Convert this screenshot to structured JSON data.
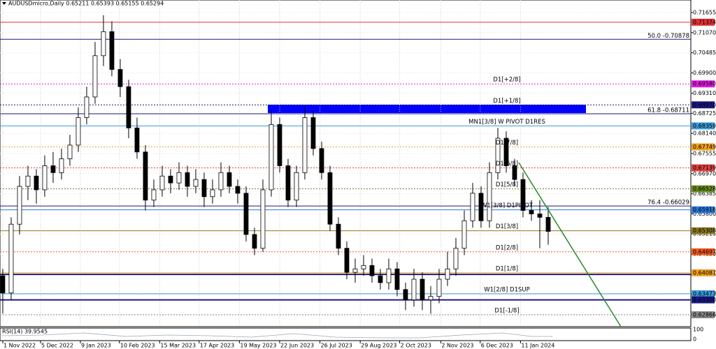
{
  "chart_data": {
    "type": "candlestick",
    "title": "AUDUSDmicro,Daily  0.65211 0.65393 0.65155 0.65294",
    "ylim": [
      0.6252,
      0.7202
    ],
    "yticks": [
      0.71655,
      {
        "value": 0.7107,
        "label": "0.71070"
      },
      0.70485,
      {
        "value": 0.699,
        "label": "0.69900"
      },
      {
        "value": 0.6931,
        "label": "0.69310"
      },
      0.68725,
      {
        "value": 0.6814,
        "label": "0.68140"
      },
      0.67555,
      {
        "value": 0.6697,
        "label": "0.66970"
      },
      0.66385,
      {
        "value": 0.658,
        "label": "0.65800"
      },
      0.65215,
      {
        "value": 0.6463,
        "label": "0.64630"
      },
      0.64045,
      {
        "value": 0.6346,
        "label": "0.63460"
      },
      0.62875
    ],
    "grid": true,
    "xlim": [
      -0.33,
      82
    ],
    "xticks": [
      {
        "value": 0,
        "label": "1 Nov 2022"
      },
      {
        "value": 4.5,
        "label": "5 Dec 2022"
      },
      {
        "value": 9.25,
        "label": "9 Jan 2023"
      },
      {
        "value": 13.9,
        "label": "10 Feb 2023"
      },
      {
        "value": 18.7,
        "label": "15 Mar 2023"
      },
      {
        "value": 23.4,
        "label": "17 Apr 2023"
      },
      {
        "value": 28.2,
        "label": "19 May 2023"
      },
      {
        "value": 33,
        "label": "22 Jun 2023"
      },
      {
        "value": 37.8,
        "label": "26 Jul 2023"
      },
      {
        "value": 42.6,
        "label": "29 Aug 2023"
      },
      {
        "value": 47.3,
        "label": "2 Oct 2023"
      },
      {
        "value": 52.2,
        "label": "2 Nov 2023"
      },
      {
        "value": 56.9,
        "label": "6 Dec 2023"
      },
      {
        "value": 61.7,
        "label": "11 Jan 2024"
      }
    ],
    "up_color": "#ffffff",
    "down_color": "#000000",
    "candles": [
      [
        0.64,
        0.642,
        0.629,
        0.635
      ],
      [
        0.635,
        0.657,
        0.633,
        0.655
      ],
      [
        0.655,
        0.669,
        0.652,
        0.666
      ],
      [
        0.666,
        0.672,
        0.662,
        0.669
      ],
      [
        0.669,
        0.671,
        0.661,
        0.665
      ],
      [
        0.665,
        0.675,
        0.663,
        0.672
      ],
      [
        0.672,
        0.676,
        0.667,
        0.67
      ],
      [
        0.67,
        0.677,
        0.668,
        0.674
      ],
      [
        0.674,
        0.681,
        0.672,
        0.678
      ],
      [
        0.678,
        0.689,
        0.676,
        0.686
      ],
      [
        0.686,
        0.695,
        0.684,
        0.692
      ],
      [
        0.692,
        0.708,
        0.69,
        0.704
      ],
      [
        0.704,
        0.7158,
        0.701,
        0.711
      ],
      [
        0.711,
        0.714,
        0.698,
        0.7
      ],
      [
        0.7,
        0.703,
        0.692,
        0.695
      ],
      [
        0.695,
        0.697,
        0.68,
        0.683
      ],
      [
        0.683,
        0.686,
        0.674,
        0.676
      ],
      [
        0.676,
        0.678,
        0.659,
        0.662
      ],
      [
        0.662,
        0.668,
        0.66,
        0.665
      ],
      [
        0.665,
        0.672,
        0.663,
        0.669
      ],
      [
        0.669,
        0.671,
        0.664,
        0.667
      ],
      [
        0.667,
        0.673,
        0.665,
        0.67
      ],
      [
        0.67,
        0.672,
        0.663,
        0.666
      ],
      [
        0.666,
        0.671,
        0.664,
        0.668
      ],
      [
        0.668,
        0.67,
        0.66,
        0.663
      ],
      [
        0.663,
        0.668,
        0.661,
        0.665
      ],
      [
        0.665,
        0.673,
        0.663,
        0.67
      ],
      [
        0.67,
        0.672,
        0.664,
        0.666
      ],
      [
        0.666,
        0.668,
        0.661,
        0.664
      ],
      [
        0.664,
        0.666,
        0.65,
        0.652
      ],
      [
        0.652,
        0.654,
        0.646,
        0.648
      ],
      [
        0.648,
        0.668,
        0.647,
        0.665
      ],
      [
        0.665,
        0.688,
        0.663,
        0.684
      ],
      [
        0.684,
        0.686,
        0.67,
        0.672
      ],
      [
        0.672,
        0.674,
        0.66,
        0.662
      ],
      [
        0.662,
        0.672,
        0.66,
        0.67
      ],
      [
        0.67,
        0.689,
        0.668,
        0.686
      ],
      [
        0.686,
        0.688,
        0.675,
        0.677
      ],
      [
        0.677,
        0.679,
        0.668,
        0.67
      ],
      [
        0.67,
        0.672,
        0.653,
        0.655
      ],
      [
        0.655,
        0.657,
        0.646,
        0.648
      ],
      [
        0.648,
        0.65,
        0.639,
        0.641
      ],
      [
        0.641,
        0.645,
        0.638,
        0.642
      ],
      [
        0.642,
        0.646,
        0.64,
        0.643
      ],
      [
        0.643,
        0.645,
        0.638,
        0.64
      ],
      [
        0.64,
        0.642,
        0.636,
        0.638
      ],
      [
        0.638,
        0.645,
        0.636,
        0.642
      ],
      [
        0.642,
        0.644,
        0.634,
        0.636
      ],
      [
        0.636,
        0.638,
        0.63,
        0.633
      ],
      [
        0.633,
        0.642,
        0.631,
        0.639
      ],
      [
        0.639,
        0.641,
        0.63,
        0.633
      ],
      [
        0.633,
        0.637,
        0.629,
        0.634
      ],
      [
        0.634,
        0.642,
        0.632,
        0.639
      ],
      [
        0.639,
        0.647,
        0.637,
        0.642
      ],
      [
        0.642,
        0.651,
        0.64,
        0.648
      ],
      [
        0.648,
        0.659,
        0.646,
        0.656
      ],
      [
        0.656,
        0.667,
        0.654,
        0.664
      ],
      [
        0.664,
        0.666,
        0.654,
        0.656
      ],
      [
        0.656,
        0.673,
        0.654,
        0.67
      ],
      [
        0.67,
        0.683,
        0.668,
        0.68
      ],
      [
        0.68,
        0.682,
        0.67,
        0.672
      ],
      [
        0.672,
        0.674,
        0.666,
        0.668
      ],
      [
        0.668,
        0.67,
        0.657,
        0.659
      ],
      [
        0.659,
        0.662,
        0.656,
        0.658
      ],
      [
        0.658,
        0.662,
        0.648,
        0.657
      ],
      [
        0.657,
        0.66,
        0.649,
        0.6529
      ]
    ],
    "levels": [
      {
        "price": 0.71374,
        "tag": "0.71374",
        "color": "#e03030",
        "style": "solid"
      },
      {
        "price": 0.70878,
        "text": "50.0 -0.70878",
        "color": "#1a1a80",
        "style": "solid"
      },
      {
        "price": 0.6958,
        "tag": "0.69580",
        "text": "D1[+2/8]",
        "color": "#e01ee0",
        "style": "dotted"
      },
      {
        "price": 0.6897,
        "tag": "0.68970",
        "text": "D1[+1/8]",
        "color": "#1a1a80",
        "style": "dotted"
      },
      {
        "price": 0.68711,
        "text": "61.8 -0.68711",
        "color": "#1a1a80",
        "style": "solid"
      },
      {
        "price": 0.68359,
        "tag": "0.68359",
        "text": "MN1[3/8] W PIVOT D1RES",
        "color": "#3a9ad9",
        "style": "solid"
      },
      {
        "price": 0.67749,
        "tag": "0.67749",
        "text": "D1[7/8]",
        "color": "#f0a020",
        "style": "dotted"
      },
      {
        "price": 0.67139,
        "tag": "0.67139",
        "text": "D1[6/8]",
        "color": "#e04040",
        "style": "dotted"
      },
      {
        "price": 0.66528,
        "tag": "0.66528",
        "text": "D1[5/8]",
        "color": "#6a8a20",
        "style": "dotted"
      },
      {
        "price": 0.66029,
        "text": "76.4 -0.66029",
        "color": "#1a1a80",
        "style": "solid"
      },
      {
        "price": 0.65918,
        "tag": "0.65918",
        "text": "W1[3/8] D1PIVOT",
        "color": "#2a7ad9",
        "style": "solid"
      },
      {
        "price": 0.65308,
        "tag": "0.65308",
        "text": "D1[3/8]",
        "color": "#8a7a20",
        "style": "solid"
      },
      {
        "price": 0.64697,
        "tag": "0.64697",
        "text": "D1[2/8]",
        "color": "#f05a20",
        "style": "dotted"
      },
      {
        "price": 0.64087,
        "tag": "0.64087",
        "text": "D1[1/8]",
        "color": "#f0a020",
        "style": "solid"
      },
      {
        "price": 0.6404,
        "color": "#1a1a80",
        "style": "solid"
      },
      {
        "price": 0.63477,
        "tag": "0.63477",
        "text": "W1[2/8] D1SUP",
        "color": "#3a9ad9",
        "style": "solid"
      },
      {
        "price": 0.633,
        "tag": "0.63300",
        "color": "#1a1a80",
        "style": "solid"
      },
      {
        "price": 0.62866,
        "tag": "0.62866",
        "text": "D1[-1/8]",
        "color": "#888888",
        "style": "dotted"
      }
    ],
    "rsi": {
      "title": "RSI(14) 39.9545",
      "ylim": [
        0,
        100
      ],
      "yticks": [
        100,
        0
      ]
    }
  }
}
